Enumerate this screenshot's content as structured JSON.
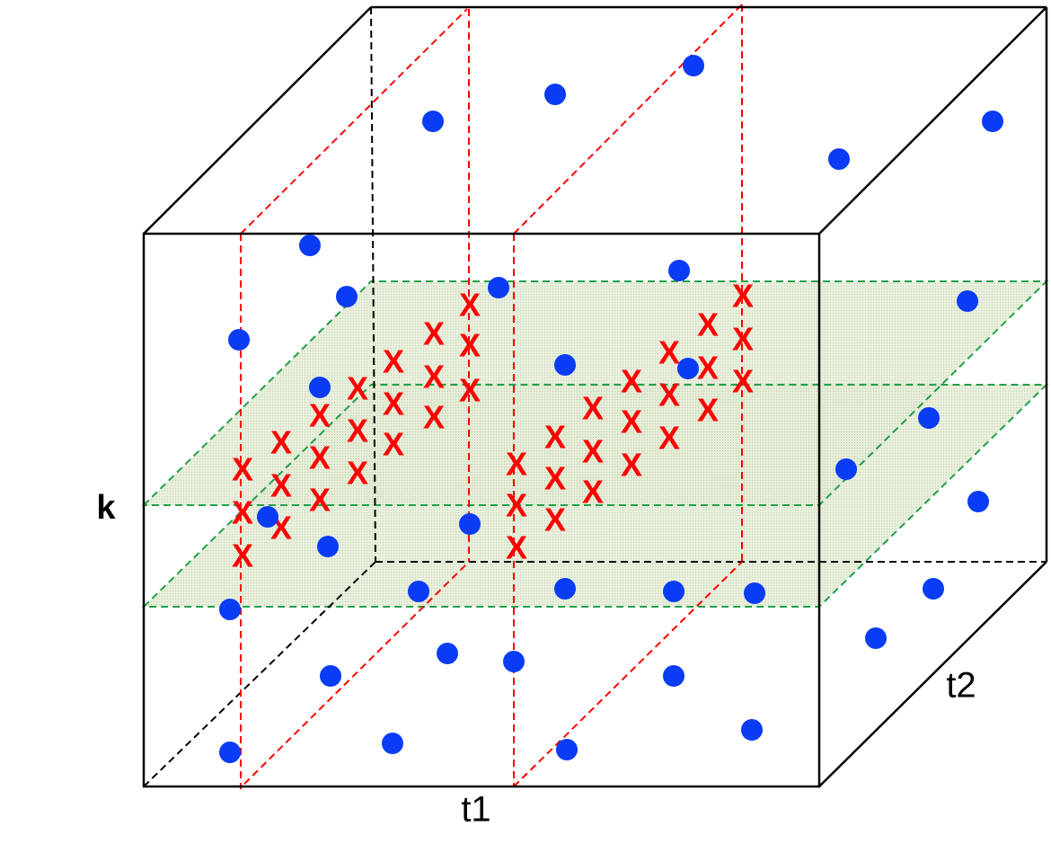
{
  "labels": {
    "k": "k",
    "t1": "t1",
    "t2": "t2"
  },
  "marker": "X"
}
